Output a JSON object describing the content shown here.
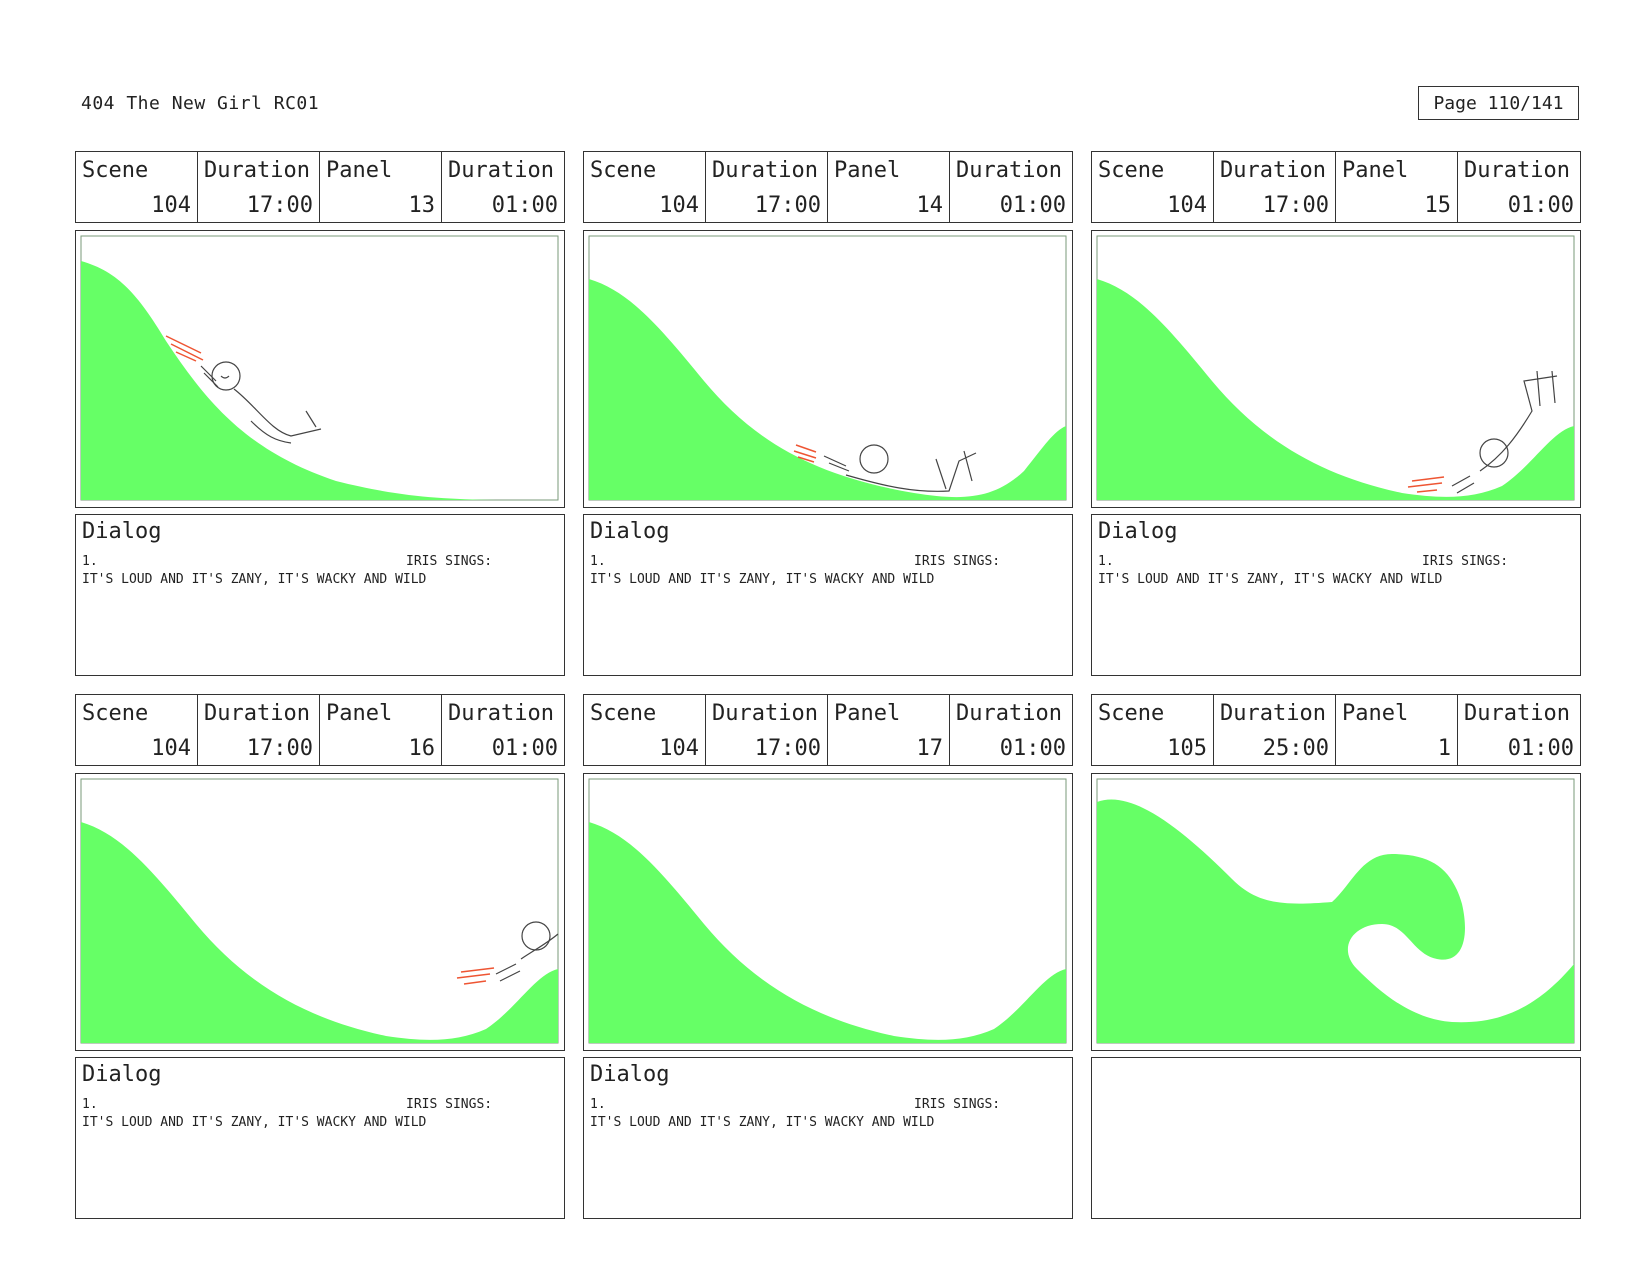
{
  "header": {
    "title": "404 The New Girl   RC01",
    "page": "Page 110/141"
  },
  "labels": {
    "scene": "Scene",
    "duration": "Duration",
    "panel": "Panel",
    "dialog": "Dialog"
  },
  "colors": {
    "ground": "#66ff66",
    "speed_lines": "#ee5533"
  },
  "panels": [
    {
      "scene": "104",
      "scene_duration": "17:00",
      "panel": "13",
      "panel_duration": "01:00",
      "dialog": {
        "number": "1.",
        "speaker": "IRIS SINGS:",
        "line": "IT'S LOUD AND IT'S ZANY, IT'S WACKY AND WILD"
      }
    },
    {
      "scene": "104",
      "scene_duration": "17:00",
      "panel": "14",
      "panel_duration": "01:00",
      "dialog": {
        "number": "1.",
        "speaker": "IRIS SINGS:",
        "line": "IT'S LOUD AND IT'S ZANY, IT'S WACKY AND WILD"
      }
    },
    {
      "scene": "104",
      "scene_duration": "17:00",
      "panel": "15",
      "panel_duration": "01:00",
      "dialog": {
        "number": "1.",
        "speaker": "IRIS SINGS:",
        "line": "IT'S LOUD AND IT'S ZANY, IT'S WACKY AND WILD"
      }
    },
    {
      "scene": "104",
      "scene_duration": "17:00",
      "panel": "16",
      "panel_duration": "01:00",
      "dialog": {
        "number": "1.",
        "speaker": "IRIS SINGS:",
        "line": "IT'S LOUD AND IT'S ZANY, IT'S WACKY AND WILD"
      }
    },
    {
      "scene": "104",
      "scene_duration": "17:00",
      "panel": "17",
      "panel_duration": "01:00",
      "dialog": {
        "number": "1.",
        "speaker": "IRIS SINGS:",
        "line": "IT'S LOUD AND IT'S ZANY, IT'S WACKY AND WILD"
      }
    },
    {
      "scene": "105",
      "scene_duration": "25:00",
      "panel": "1",
      "panel_duration": "01:00",
      "dialog": null
    }
  ]
}
